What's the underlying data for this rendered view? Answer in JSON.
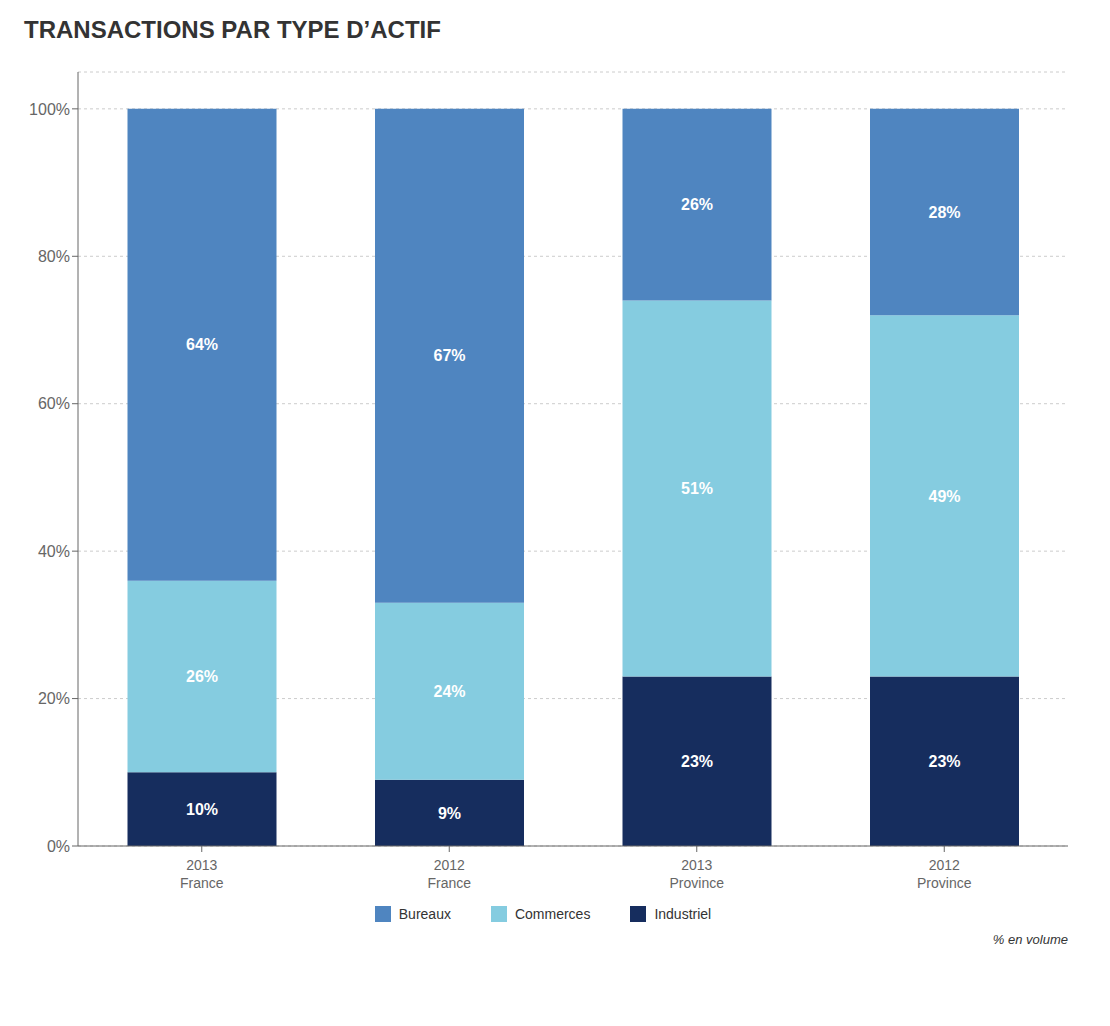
{
  "chart_data": {
    "type": "bar",
    "title": "TRANSACTIONS PAR TYPE D’ACTIF",
    "categories": [
      "2013\nFrance",
      "2012\nFrance",
      "2013\nProvince",
      "2012\nProvince"
    ],
    "series": [
      {
        "name": "Industriel",
        "color": "#162d5e",
        "values": [
          10,
          9,
          23,
          23
        ],
        "value_labels": [
          "10%",
          "9%",
          "23%",
          "23%"
        ]
      },
      {
        "name": "Commerces",
        "color": "#85cce0",
        "values": [
          26,
          24,
          51,
          49
        ],
        "value_labels": [
          "26%",
          "24%",
          "51%",
          "49%"
        ]
      },
      {
        "name": "Bureaux",
        "color": "#4f85c0",
        "values": [
          64,
          67,
          26,
          28
        ],
        "value_labels": [
          "64%",
          "67%",
          "26%",
          "28%"
        ]
      }
    ],
    "ylim": [
      0,
      105
    ],
    "yticks": [
      {
        "value": 0,
        "label": "0%"
      },
      {
        "value": 20,
        "label": "20%"
      },
      {
        "value": 40,
        "label": "40%"
      },
      {
        "value": 60,
        "label": "60%"
      },
      {
        "value": 80,
        "label": "80%"
      },
      {
        "value": 100,
        "label": "100%"
      }
    ],
    "stacked": true,
    "data_labels": true,
    "grid": true,
    "legend": "bottom",
    "annotations": [
      "% en volume"
    ]
  }
}
